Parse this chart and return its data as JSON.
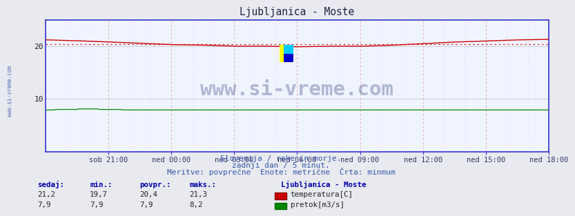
{
  "title": "Ljubljanica - Moste",
  "fig_bg_color": "#e8eaf0",
  "plot_bg_color": "#f0f4ff",
  "axis_color": "#3333cc",
  "grid_major_h_color": "#ccccdd",
  "grid_minor_v_color": "#ffcccc",
  "grid_major_v_color": "#ddaaaa",
  "xlim": [
    0,
    288
  ],
  "ylim": [
    0,
    25
  ],
  "ytick_vals": [
    10,
    20
  ],
  "ytick_labels": [
    "10",
    "20"
  ],
  "xtick_labels": [
    "sob 21:00",
    "ned 00:00",
    "ned 03:00",
    "ned 06:00",
    "ned 09:00",
    "ned 12:00",
    "ned 15:00",
    "ned 18:00"
  ],
  "xtick_positions": [
    36,
    72,
    108,
    144,
    180,
    216,
    252,
    288
  ],
  "temp_color": "#cc0000",
  "flow_color": "#008800",
  "watermark": "www.si-vreme.com",
  "watermark_color": "#1a2e6e",
  "watermark_alpha": 0.3,
  "logo_yellow": "#ffff00",
  "logo_cyan": "#00ccff",
  "logo_blue": "#0000cc",
  "left_label": "www.si-vreme.com",
  "left_label_color": "#3355aa",
  "subtitle1": "Slovenija / reke in morje.",
  "subtitle2": "zadnji dan / 5 minut.",
  "subtitle3": "Meritve: povprečne  Enote: metrične  Črta: minmum",
  "subtitle_color": "#3355aa",
  "legend_title": "Ljubljanica - Moste",
  "stats_headers": [
    "sedaj:",
    "min.:",
    "povpr.:",
    "maks.:"
  ],
  "stats_temp": [
    "21,2",
    "19,7",
    "20,4",
    "21,3"
  ],
  "stats_flow": [
    "7,9",
    "7,9",
    "7,9",
    "8,2"
  ],
  "temp_avg_value": 20.4,
  "flow_avg_value": 7.9,
  "temp_min": 19.7,
  "temp_max": 21.3,
  "flow_min": 7.9,
  "flow_max": 8.2
}
